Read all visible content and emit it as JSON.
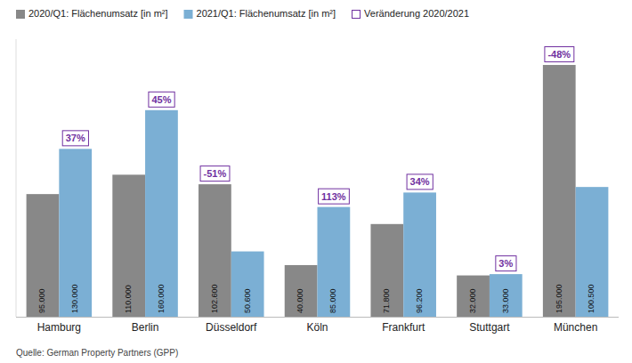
{
  "chart_data": {
    "type": "bar",
    "categories": [
      "Hamburg",
      "Berlin",
      "Düsseldorf",
      "Köln",
      "Frankfurt",
      "Stuttgart",
      "München"
    ],
    "series": [
      {
        "name": "2020/Q1: Flächenumsatz [in m²]",
        "color": "#888888",
        "values": [
          95000,
          110000,
          102600,
          40000,
          71800,
          32000,
          195000
        ],
        "value_labels": [
          "95.000",
          "110.000",
          "102.600",
          "40.000",
          "71.800",
          "32.000",
          "195.000"
        ]
      },
      {
        "name": "2021/Q1: Flächenumsatz [in m²]",
        "color": "#7bafd4",
        "values": [
          130000,
          160000,
          50600,
          85000,
          96200,
          33000,
          100500
        ],
        "value_labels": [
          "130.000",
          "160.000",
          "50.600",
          "85.000",
          "96.200",
          "33.000",
          "100.500"
        ]
      }
    ],
    "changes": {
      "name": "Veränderung 2020/2021",
      "color": "#7030a0",
      "values": [
        37,
        45,
        -51,
        113,
        34,
        3,
        -48
      ],
      "value_labels": [
        "37%",
        "45%",
        "-51%",
        "113%",
        "34%",
        "3%",
        "-48%"
      ]
    },
    "source": "Quelle: German Property Partners (GPP)",
    "ylim": [
      0,
      215000
    ],
    "yticks": [],
    "grid": false,
    "legend": "upper left",
    "data_labels": true,
    "tick_labels": "x"
  }
}
